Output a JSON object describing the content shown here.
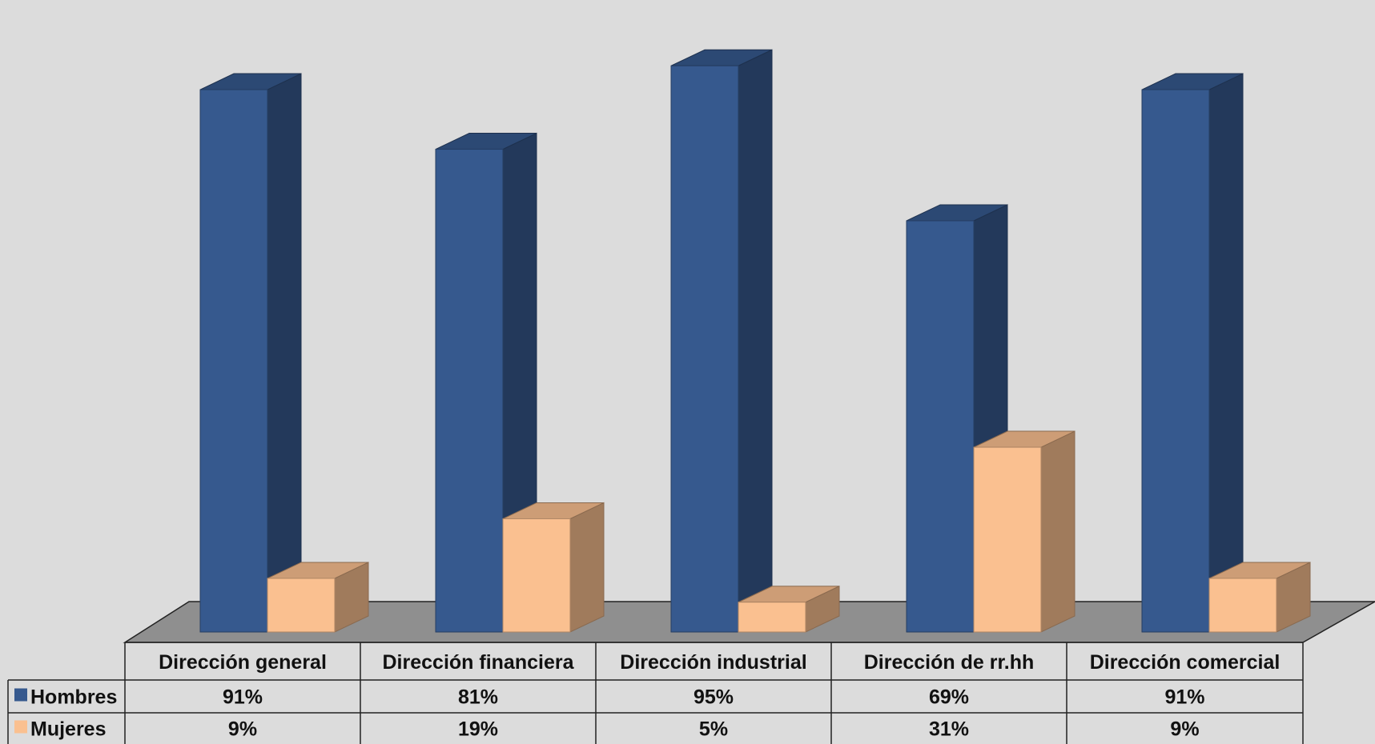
{
  "chart_data": {
    "type": "bar",
    "style": "3d-clustered-column-with-data-table",
    "categories": [
      "Dirección general",
      "Dirección financiera",
      "Dirección industrial",
      "Dirección de rr.hh",
      "Dirección comercial"
    ],
    "series": [
      {
        "name": "Hombres",
        "values": [
          91,
          81,
          95,
          69,
          91
        ],
        "labels": [
          "91%",
          "81%",
          "95%",
          "69%",
          "91%"
        ],
        "color": "#36598e"
      },
      {
        "name": "Mujeres",
        "values": [
          9,
          19,
          5,
          31,
          9
        ],
        "labels": [
          "9%",
          "19%",
          "5%",
          "31%",
          "9%"
        ],
        "color": "#fac090"
      }
    ],
    "ylim": [
      0,
      100
    ],
    "grid": false,
    "legend": "data-table",
    "floor_color": "#8f8f8f",
    "background_color": "#dcdcdc"
  }
}
